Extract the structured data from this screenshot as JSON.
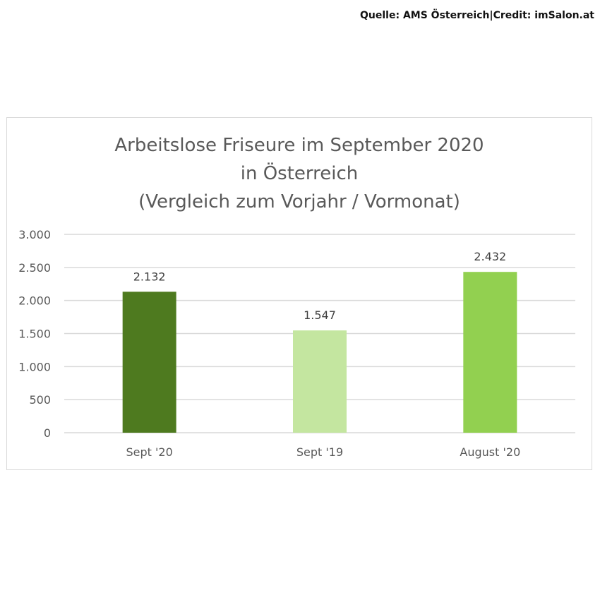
{
  "credit": "Quelle: AMS Österreich|Credit: imSalon.at",
  "chart_data": {
    "type": "bar",
    "title_lines": [
      "Arbeitslose Friseure im September 2020",
      "in Österreich",
      "(Vergleich zum Vorjahr / Vormonat)"
    ],
    "categories": [
      "Sept '20",
      "Sept '19",
      "August '20"
    ],
    "values": [
      2132,
      1547,
      2432
    ],
    "data_labels": [
      "2.132",
      "1.547",
      "2.432"
    ],
    "bar_colors": [
      "#4e7a1f",
      "#c4e6a0",
      "#92d050"
    ],
    "ylim": [
      0,
      3000
    ],
    "yticks": [
      0,
      500,
      1000,
      1500,
      2000,
      2500,
      3000
    ],
    "ytick_labels": [
      "0",
      "500",
      "1.000",
      "1.500",
      "2.000",
      "2.500",
      "3.000"
    ],
    "grid": true,
    "legend": "none"
  }
}
